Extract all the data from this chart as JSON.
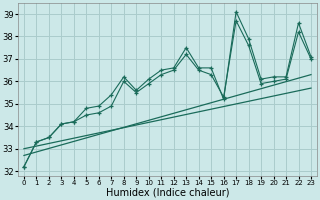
{
  "xlabel": "Humidex (Indice chaleur)",
  "xlim": [
    -0.5,
    23.5
  ],
  "ylim": [
    31.8,
    39.5
  ],
  "yticks": [
    32,
    33,
    34,
    35,
    36,
    37,
    38,
    39
  ],
  "xticks": [
    0,
    1,
    2,
    3,
    4,
    5,
    6,
    7,
    8,
    9,
    10,
    11,
    12,
    13,
    14,
    15,
    16,
    17,
    18,
    19,
    20,
    21,
    22,
    23
  ],
  "background_color": "#cce8e8",
  "grid_color": "#aacccc",
  "line_color": "#1a6b5a",
  "line1_x": [
    0,
    1,
    2,
    3,
    4,
    5,
    6,
    7,
    8,
    9,
    10,
    11,
    12,
    13,
    14,
    15,
    16,
    17,
    18,
    19,
    20,
    21,
    22,
    23
  ],
  "line1_y": [
    32.2,
    33.3,
    33.5,
    34.1,
    34.2,
    34.8,
    34.9,
    35.4,
    36.2,
    35.6,
    36.1,
    36.5,
    36.6,
    37.5,
    36.6,
    36.6,
    35.2,
    39.1,
    37.9,
    36.1,
    36.2,
    36.2,
    38.6,
    37.1
  ],
  "line2_x": [
    0,
    1,
    2,
    3,
    4,
    5,
    6,
    7,
    8,
    9,
    10,
    11,
    12,
    13,
    14,
    15,
    16,
    17,
    18,
    19,
    20,
    21,
    22,
    23
  ],
  "line2_y": [
    32.2,
    33.3,
    33.5,
    34.1,
    34.2,
    34.5,
    34.6,
    34.9,
    36.0,
    35.5,
    35.9,
    36.3,
    36.5,
    37.2,
    36.5,
    36.3,
    35.3,
    38.7,
    37.6,
    35.9,
    36.0,
    36.1,
    38.2,
    37.0
  ],
  "line3_x": [
    0,
    23
  ],
  "line3_y": [
    32.7,
    36.3
  ],
  "line4_x": [
    0,
    23
  ],
  "line4_y": [
    33.0,
    35.7
  ]
}
